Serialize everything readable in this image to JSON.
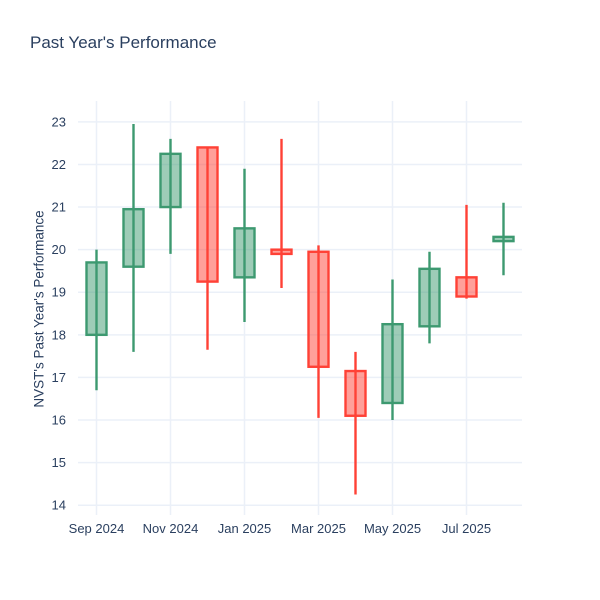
{
  "title": "Past Year's Performance",
  "y_axis_label": "NVST's Past Year's Performance",
  "colors": {
    "increasing_line": "#3D9970",
    "increasing_fill": "rgba(61,153,112,0.5)",
    "decreasing_line": "#FF4136",
    "decreasing_fill": "rgba(255,65,54,0.5)",
    "gridline": "#EBF0F8",
    "text": "#2a3f5f",
    "background": "#ffffff"
  },
  "chart_data": {
    "type": "candlestick",
    "title": "Past Year's Performance",
    "xlabel": "",
    "ylabel": "NVST's Past Year's Performance",
    "grid": true,
    "legend": "none",
    "ylim": [
      13.77,
      23.49
    ],
    "y_ticks": [
      14,
      15,
      16,
      17,
      18,
      19,
      20,
      21,
      22,
      23
    ],
    "x": [
      "Sep 2024",
      "Oct 2024",
      "Nov 2024",
      "Dec 2024",
      "Jan 2025",
      "Feb 2025",
      "Mar 2025",
      "Apr 2025",
      "May 2025",
      "Jun 2025",
      "Jul 2025",
      "Aug 2025"
    ],
    "x_tick_labels": [
      "Sep 2024",
      "Nov 2024",
      "Jan 2025",
      "Mar 2025",
      "May 2025",
      "Jul 2025"
    ],
    "series": [
      {
        "name": "NVST",
        "open": [
          18.0,
          19.6,
          21.0,
          22.4,
          19.35,
          20.0,
          19.95,
          17.15,
          16.4,
          18.2,
          19.35,
          20.2
        ],
        "high": [
          20.0,
          22.95,
          22.6,
          22.4,
          21.9,
          22.6,
          20.1,
          17.6,
          19.3,
          19.95,
          21.05,
          21.1
        ],
        "low": [
          16.7,
          17.6,
          19.9,
          17.65,
          18.3,
          19.1,
          16.05,
          14.25,
          16.0,
          17.8,
          18.85,
          19.4
        ],
        "close": [
          19.7,
          20.95,
          22.25,
          19.25,
          20.5,
          19.9,
          17.25,
          16.1,
          18.25,
          19.55,
          18.9,
          20.3
        ]
      }
    ]
  }
}
